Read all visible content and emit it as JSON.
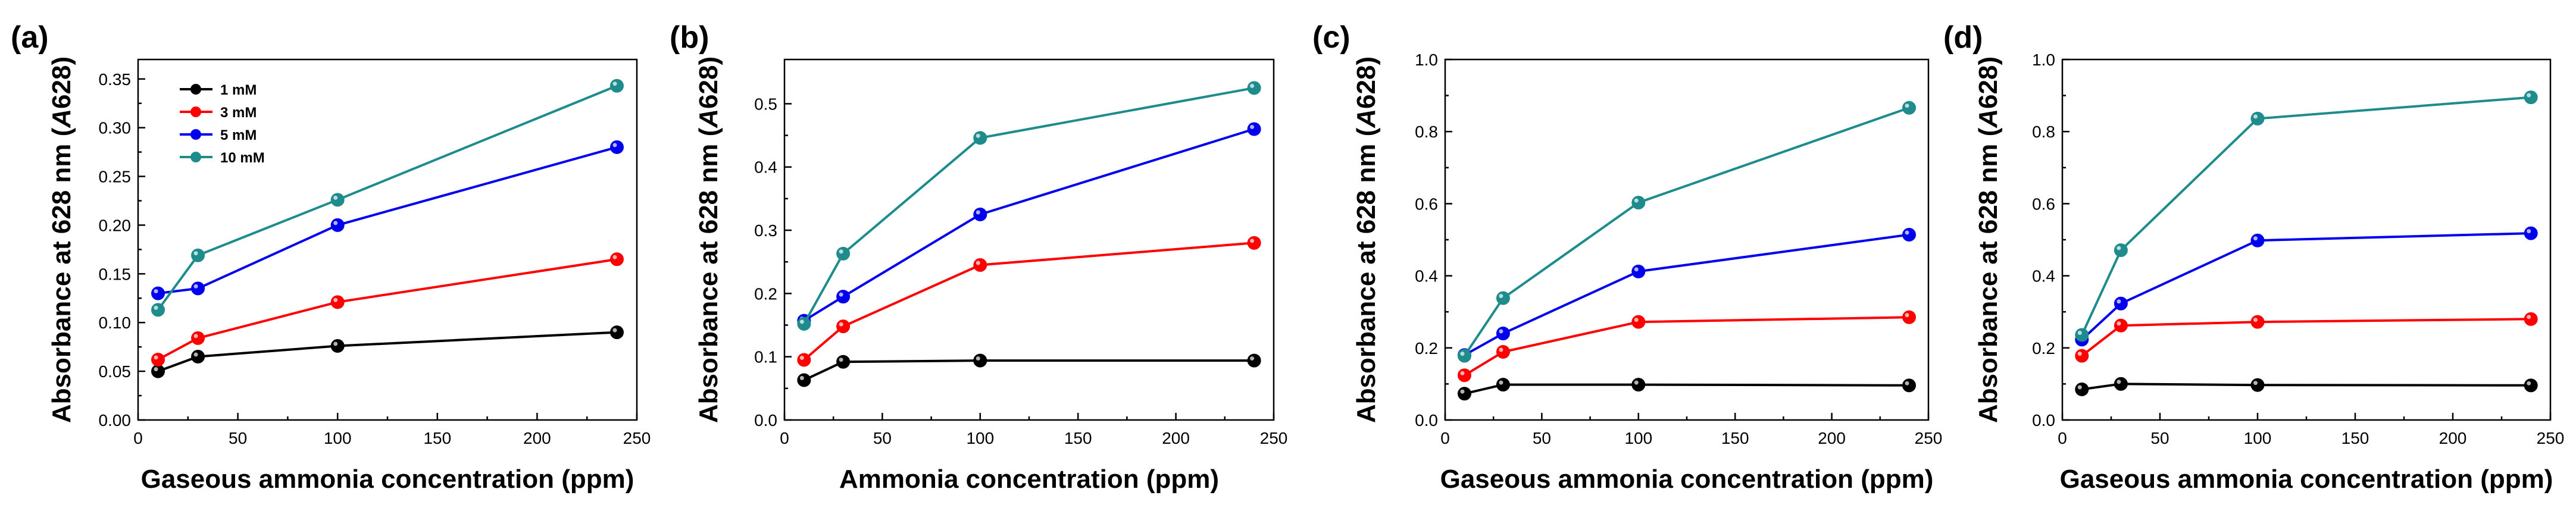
{
  "chart_data": [
    {
      "panel": "(a)",
      "type": "line",
      "xlabel": "Gaseous ammonia concentration (ppm)",
      "ylabel_main": "Absorbance at 628 nm (",
      "ylabel_italic": "A",
      "ylabel_tail": "628)",
      "xlim": [
        0,
        250
      ],
      "ylim": [
        0,
        0.37
      ],
      "xticks": [
        0,
        50,
        100,
        150,
        200,
        250
      ],
      "yticks": [
        0.0,
        0.05,
        0.1,
        0.15,
        0.2,
        0.25,
        0.3,
        0.35
      ],
      "ytick_labels": [
        "0.00",
        "0.05",
        "0.10",
        "0.15",
        "0.20",
        "0.25",
        "0.30",
        "0.35"
      ],
      "x": [
        10,
        30,
        100,
        240
      ],
      "legend": "top-left",
      "series": [
        {
          "name": "1 mM",
          "color": "#000000",
          "values": [
            0.05,
            0.065,
            0.076,
            0.09
          ]
        },
        {
          "name": "3 mM",
          "color": "#ff0000",
          "values": [
            0.062,
            0.084,
            0.121,
            0.165
          ]
        },
        {
          "name": "5 mM",
          "color": "#0000ee",
          "values": [
            0.13,
            0.135,
            0.2,
            0.28
          ]
        },
        {
          "name": "10 mM",
          "color": "#1e8c8c",
          "values": [
            0.113,
            0.169,
            0.226,
            0.343
          ]
        }
      ]
    },
    {
      "panel": "(b)",
      "type": "line",
      "xlabel": "Ammonia concentration (ppm)",
      "ylabel_main": "Absorbance at 628 nm (",
      "ylabel_italic": "A",
      "ylabel_tail": "628)",
      "xlim": [
        0,
        250
      ],
      "ylim": [
        0,
        0.57
      ],
      "xticks": [
        0,
        50,
        100,
        150,
        200,
        250
      ],
      "yticks": [
        0.0,
        0.1,
        0.2,
        0.3,
        0.4,
        0.5
      ],
      "ytick_labels": [
        "0.0",
        "0.1",
        "0.2",
        "0.3",
        "0.4",
        "0.5"
      ],
      "x": [
        10,
        30,
        100,
        240
      ],
      "series": [
        {
          "name": "1 mM",
          "color": "#000000",
          "values": [
            0.063,
            0.092,
            0.094,
            0.094
          ]
        },
        {
          "name": "3 mM",
          "color": "#ff0000",
          "values": [
            0.095,
            0.148,
            0.245,
            0.28
          ]
        },
        {
          "name": "5 mM",
          "color": "#0000ee",
          "values": [
            0.157,
            0.195,
            0.325,
            0.46
          ]
        },
        {
          "name": "10 mM",
          "color": "#1e8c8c",
          "values": [
            0.152,
            0.263,
            0.446,
            0.525
          ]
        }
      ]
    },
    {
      "panel": "(c)",
      "type": "line",
      "xlabel": "Gaseous ammonia concentration (ppm)",
      "ylabel_main": "Absorbance at 628 nm (",
      "ylabel_italic": "A",
      "ylabel_tail": "628)",
      "xlim": [
        0,
        250
      ],
      "ylim": [
        0,
        1.0
      ],
      "xticks": [
        0,
        50,
        100,
        150,
        200,
        250
      ],
      "yticks": [
        0.0,
        0.2,
        0.4,
        0.6,
        0.8,
        1.0
      ],
      "ytick_labels": [
        "0.0",
        "0.2",
        "0.4",
        "0.6",
        "0.8",
        "1.0"
      ],
      "x": [
        10,
        30,
        100,
        240
      ],
      "series": [
        {
          "name": "1 mM",
          "color": "#000000",
          "values": [
            0.073,
            0.098,
            0.098,
            0.096
          ]
        },
        {
          "name": "3 mM",
          "color": "#ff0000",
          "values": [
            0.124,
            0.189,
            0.272,
            0.285
          ]
        },
        {
          "name": "5 mM",
          "color": "#0000ee",
          "values": [
            0.18,
            0.24,
            0.412,
            0.514
          ]
        },
        {
          "name": "10 mM",
          "color": "#1e8c8c",
          "values": [
            0.178,
            0.338,
            0.603,
            0.866
          ]
        }
      ]
    },
    {
      "panel": "(d)",
      "type": "line",
      "xlabel": "Gaseous ammonia concentration (ppm)",
      "ylabel_main": "Absorbance at 628 nm (",
      "ylabel_italic": "A",
      "ylabel_tail": "628)",
      "xlim": [
        0,
        250
      ],
      "ylim": [
        0,
        1.0
      ],
      "xticks": [
        0,
        50,
        100,
        150,
        200,
        250
      ],
      "yticks": [
        0.0,
        0.2,
        0.4,
        0.6,
        0.8,
        1.0
      ],
      "ytick_labels": [
        "0.0",
        "0.2",
        "0.4",
        "0.6",
        "0.8",
        "1.0"
      ],
      "x": [
        10,
        30,
        100,
        240
      ],
      "series": [
        {
          "name": "1 mM",
          "color": "#000000",
          "values": [
            0.085,
            0.1,
            0.097,
            0.096
          ]
        },
        {
          "name": "3 mM",
          "color": "#ff0000",
          "values": [
            0.178,
            0.262,
            0.272,
            0.28
          ]
        },
        {
          "name": "5 mM",
          "color": "#0000ee",
          "values": [
            0.223,
            0.323,
            0.498,
            0.518
          ]
        },
        {
          "name": "10 mM",
          "color": "#1e8c8c",
          "values": [
            0.236,
            0.471,
            0.836,
            0.895
          ]
        }
      ]
    }
  ]
}
